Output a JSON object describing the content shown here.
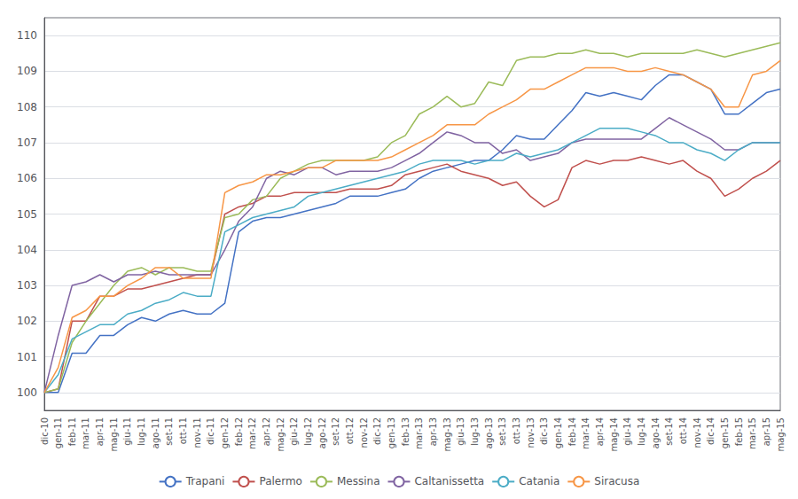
{
  "chart_data": {
    "type": "line",
    "categories": [
      "dic-10",
      "gen-11",
      "feb-11",
      "mar-11",
      "apr-11",
      "mag-11",
      "giu-11",
      "lug-11",
      "ago-11",
      "set-11",
      "ott-11",
      "nov-11",
      "dic-11",
      "gen-12",
      "feb-12",
      "mar-12",
      "apr-12",
      "mag-12",
      "giu-12",
      "lug-12",
      "ago-12",
      "set-12",
      "ott-12",
      "nov-12",
      "dic-12",
      "gen-13",
      "feb-13",
      "mar-13",
      "apr-13",
      "mag-13",
      "giu-13",
      "lug-13",
      "ago-13",
      "set-13",
      "ott-13",
      "nov-13",
      "dic-13",
      "gen-14",
      "feb-14",
      "mar-14",
      "apr-14",
      "mag-14",
      "giu-14",
      "lug-14",
      "ago-14",
      "set-14",
      "ott-14",
      "nov-14",
      "dic-14",
      "gen-15",
      "feb-15",
      "mar-15",
      "apr-15",
      "mag-15"
    ],
    "series": [
      {
        "name": "Trapani",
        "color": "#4472C4",
        "values": [
          100.0,
          100.0,
          101.1,
          101.1,
          101.6,
          101.6,
          101.9,
          102.1,
          102.0,
          102.2,
          102.3,
          102.2,
          102.2,
          102.5,
          104.5,
          104.8,
          104.9,
          104.9,
          105.0,
          105.1,
          105.2,
          105.3,
          105.5,
          105.5,
          105.5,
          105.6,
          105.7,
          106.0,
          106.2,
          106.3,
          106.4,
          106.5,
          106.5,
          106.8,
          107.2,
          107.1,
          107.1,
          107.5,
          107.9,
          108.4,
          108.3,
          108.4,
          108.3,
          108.2,
          108.6,
          108.9,
          108.9,
          108.7,
          108.5,
          107.8,
          107.8,
          108.1,
          108.4,
          108.5
        ]
      },
      {
        "name": "Palermo",
        "color": "#C0504D",
        "values": [
          100.0,
          100.1,
          102.0,
          102.0,
          102.7,
          102.7,
          102.9,
          102.9,
          103.0,
          103.1,
          103.2,
          103.3,
          103.3,
          105.0,
          105.2,
          105.3,
          105.5,
          105.5,
          105.6,
          105.6,
          105.6,
          105.6,
          105.7,
          105.7,
          105.7,
          105.8,
          106.1,
          106.2,
          106.3,
          106.4,
          106.2,
          106.1,
          106.0,
          105.8,
          105.9,
          105.5,
          105.2,
          105.4,
          106.3,
          106.5,
          106.4,
          106.5,
          106.5,
          106.6,
          106.5,
          106.4,
          106.5,
          106.2,
          106.0,
          105.5,
          105.7,
          106.0,
          106.2,
          106.5
        ]
      },
      {
        "name": "Messina",
        "color": "#9BBB59",
        "values": [
          100.0,
          100.1,
          101.4,
          102.0,
          102.5,
          103.0,
          103.4,
          103.5,
          103.3,
          103.5,
          103.5,
          103.4,
          103.4,
          104.9,
          105.0,
          105.4,
          105.5,
          106.0,
          106.2,
          106.4,
          106.5,
          106.5,
          106.5,
          106.5,
          106.6,
          107.0,
          107.2,
          107.8,
          108.0,
          108.3,
          108.0,
          108.1,
          108.7,
          108.6,
          109.3,
          109.4,
          109.4,
          109.5,
          109.5,
          109.6,
          109.5,
          109.5,
          109.4,
          109.5,
          109.5,
          109.5,
          109.5,
          109.6,
          109.5,
          109.4,
          109.5,
          109.6,
          109.7,
          109.8
        ]
      },
      {
        "name": "Caltanissetta",
        "color": "#8064A2",
        "values": [
          100.0,
          101.6,
          103.0,
          103.1,
          103.3,
          103.1,
          103.3,
          103.3,
          103.4,
          103.3,
          103.3,
          103.3,
          103.3,
          104.0,
          104.8,
          105.2,
          106.0,
          106.2,
          106.1,
          106.3,
          106.3,
          106.1,
          106.2,
          106.2,
          106.2,
          106.3,
          106.5,
          106.7,
          107.0,
          107.3,
          107.2,
          107.0,
          107.0,
          106.7,
          106.8,
          106.5,
          106.6,
          106.7,
          107.0,
          107.1,
          107.1,
          107.1,
          107.1,
          107.1,
          107.4,
          107.7,
          107.5,
          107.3,
          107.1,
          106.8,
          106.8,
          107.0,
          107.0,
          107.0
        ]
      },
      {
        "name": "Catania",
        "color": "#4BACC6",
        "values": [
          100.0,
          100.5,
          101.5,
          101.7,
          101.9,
          101.9,
          102.2,
          102.3,
          102.5,
          102.6,
          102.8,
          102.7,
          102.7,
          104.5,
          104.7,
          104.9,
          105.0,
          105.1,
          105.2,
          105.5,
          105.6,
          105.7,
          105.8,
          105.9,
          106.0,
          106.1,
          106.2,
          106.4,
          106.5,
          106.5,
          106.5,
          106.4,
          106.5,
          106.5,
          106.7,
          106.6,
          106.7,
          106.8,
          107.0,
          107.2,
          107.4,
          107.4,
          107.4,
          107.3,
          107.2,
          107.0,
          107.0,
          106.8,
          106.7,
          106.5,
          106.8,
          107.0,
          107.0,
          107.0
        ]
      },
      {
        "name": "Siracusa",
        "color": "#F79646",
        "values": [
          100.0,
          100.7,
          102.1,
          102.3,
          102.7,
          102.7,
          103.0,
          103.2,
          103.5,
          103.5,
          103.2,
          103.2,
          103.2,
          105.6,
          105.8,
          105.9,
          106.1,
          106.1,
          106.2,
          106.3,
          106.3,
          106.5,
          106.5,
          106.5,
          106.5,
          106.6,
          106.8,
          107.0,
          107.2,
          107.5,
          107.5,
          107.5,
          107.8,
          108.0,
          108.2,
          108.5,
          108.5,
          108.7,
          108.9,
          109.1,
          109.1,
          109.1,
          109.0,
          109.0,
          109.1,
          109.0,
          108.9,
          108.7,
          108.5,
          108.0,
          108.0,
          108.9,
          109.0,
          109.3
        ]
      }
    ],
    "ylim": [
      99.5,
      110.5
    ],
    "yticks": [
      100,
      101,
      102,
      103,
      104,
      105,
      106,
      107,
      108,
      109,
      110
    ],
    "grid": true,
    "legend": "bottom"
  }
}
